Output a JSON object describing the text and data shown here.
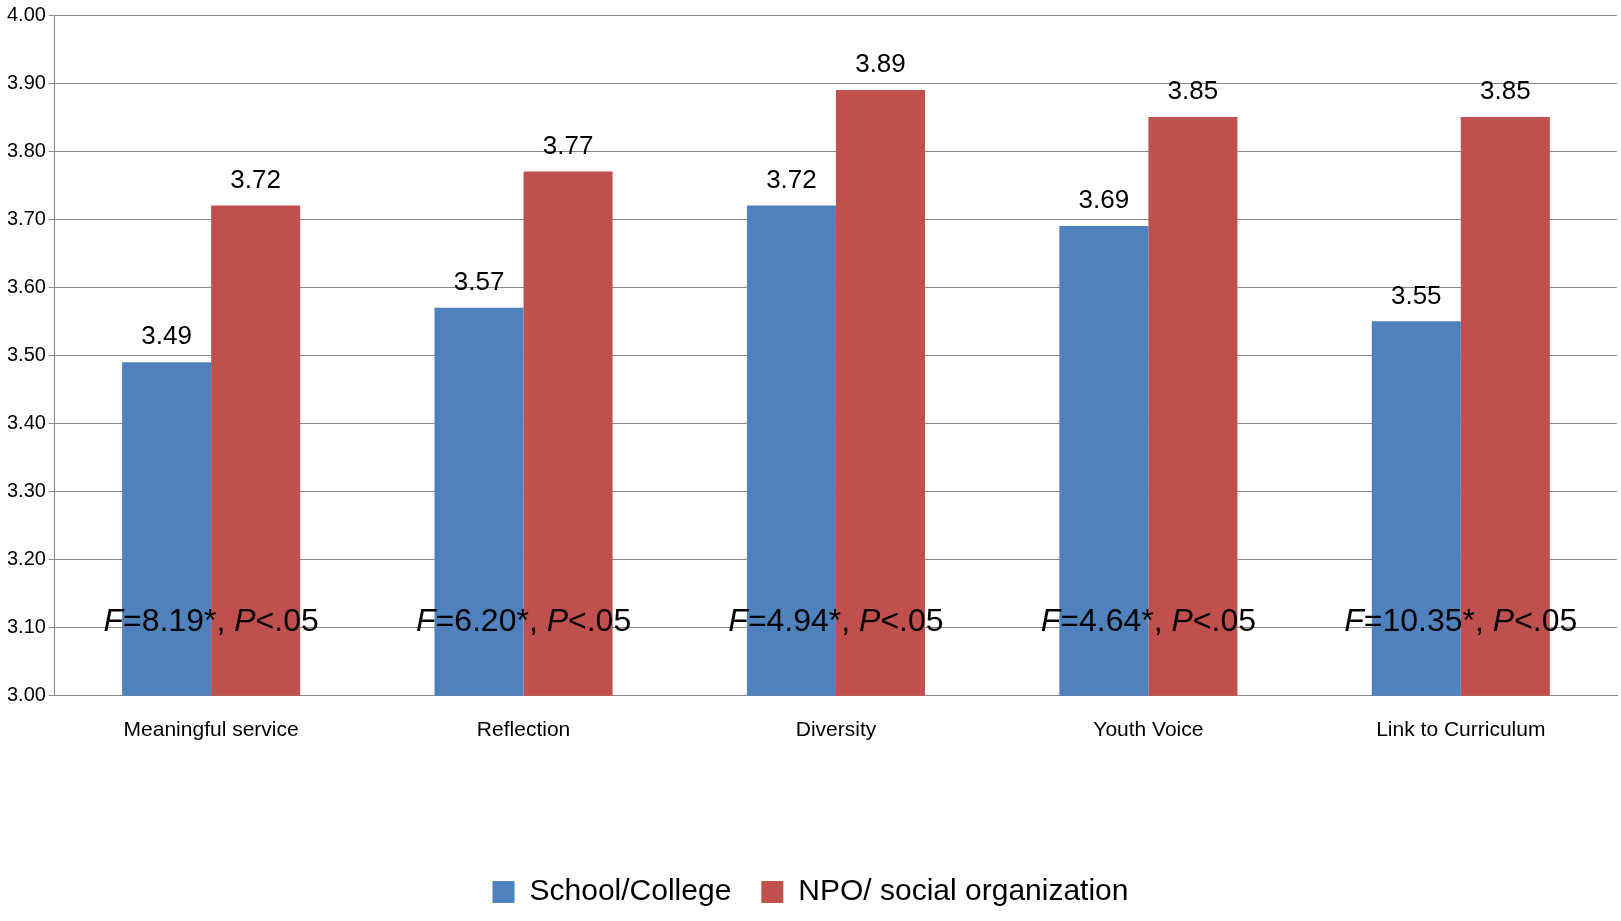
{
  "chart_data": {
    "type": "bar",
    "categories": [
      "Meaningful service",
      "Reflection",
      "Diversity",
      "Youth Voice",
      "Link to Curriculum"
    ],
    "series": [
      {
        "name": "School/College",
        "color": "#4f81bd",
        "values": [
          3.49,
          3.57,
          3.72,
          3.69,
          3.55
        ]
      },
      {
        "name": "NPO/ social organization",
        "color": "#c0504d",
        "values": [
          3.72,
          3.77,
          3.89,
          3.85,
          3.85
        ]
      }
    ],
    "ylim": [
      3.0,
      4.0
    ],
    "yticks": [
      {
        "value": 3.0,
        "label": "3.00"
      },
      {
        "value": 3.1,
        "label": "3.10"
      },
      {
        "value": 3.2,
        "label": "3.20"
      },
      {
        "value": 3.3,
        "label": "3.30"
      },
      {
        "value": 3.4,
        "label": "3.40"
      },
      {
        "value": 3.5,
        "label": "3.50"
      },
      {
        "value": 3.6,
        "label": "3.60"
      },
      {
        "value": 3.7,
        "label": "3.70"
      },
      {
        "value": 3.8,
        "label": "3.80"
      },
      {
        "value": 3.9,
        "label": "3.90"
      },
      {
        "value": 4.0,
        "label": "4.00"
      }
    ],
    "grid": "y",
    "legend": "bottom",
    "data_labels": true,
    "annotations": [
      {
        "text": "F=8.19*, P<.05",
        "x": "Meaningful service",
        "y": 3.1
      },
      {
        "text": "F=6.20*, P<.05",
        "x": "Reflection",
        "y": 3.1
      },
      {
        "text": "F=4.94*, P<.05",
        "x": "Diversity",
        "y": 3.1
      },
      {
        "text": "F=4.64*, P<.05",
        "x": "Youth Voice",
        "y": 3.1
      },
      {
        "text": "F=10.35*, P<.05",
        "x": "Link to Curriculum",
        "y": 3.1
      }
    ]
  }
}
